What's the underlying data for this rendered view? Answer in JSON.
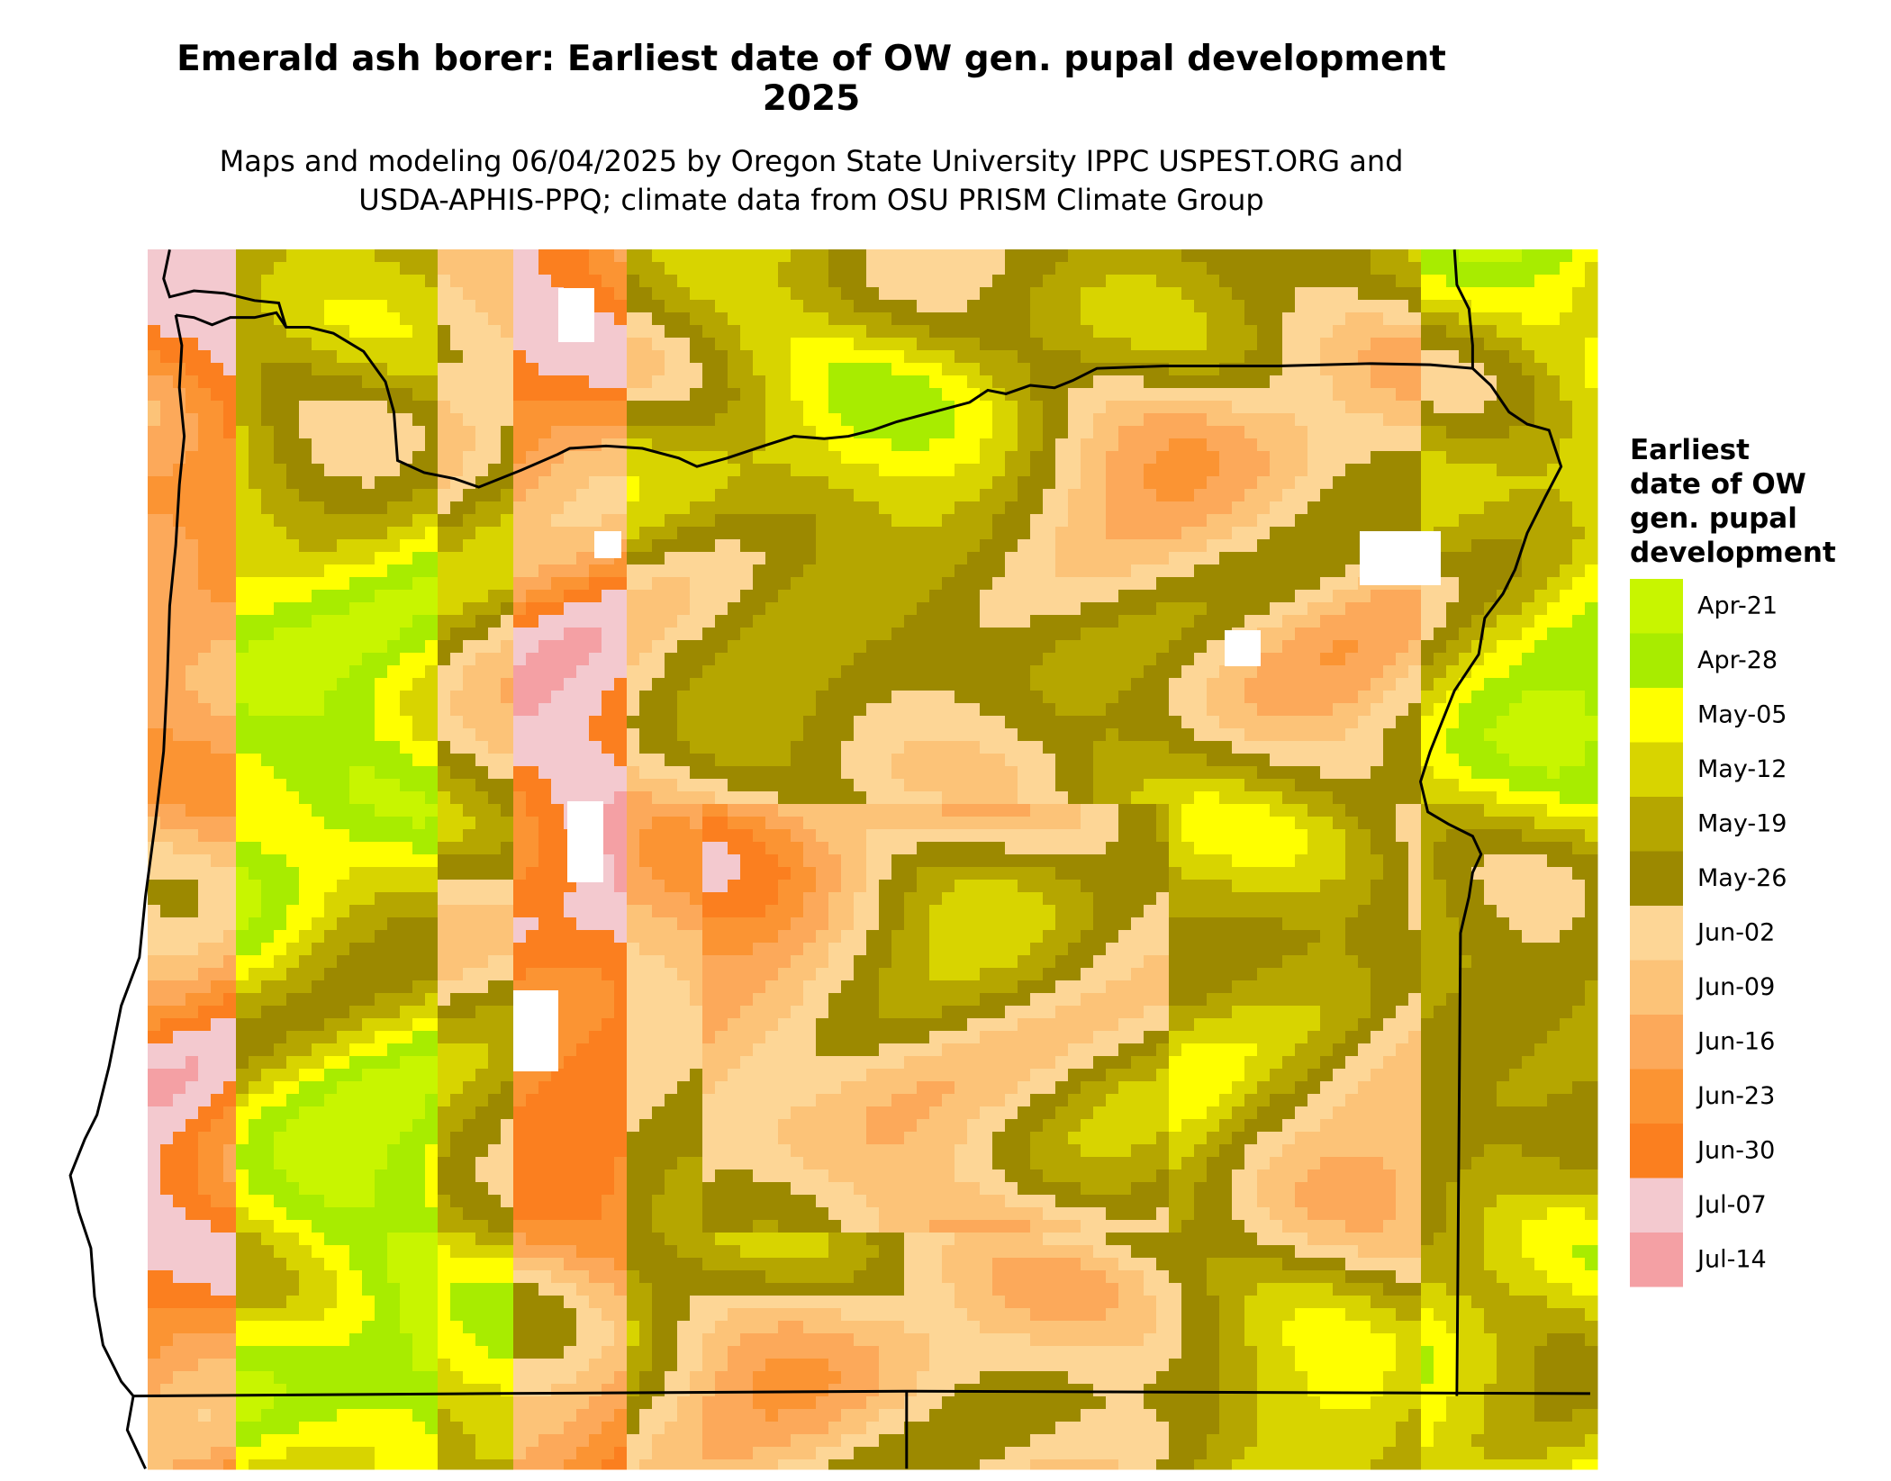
{
  "header": {
    "title_lines": [
      "Emerald ash borer: Earliest date of OW gen. pupal development",
      "2025"
    ],
    "subtitle_lines": [
      "Maps and modeling 06/04/2025 by Oregon State University IPPC USPEST.ORG and",
      "USDA-APHIS-PPQ; climate data from OSU PRISM Climate Group"
    ]
  },
  "legend": {
    "title_lines": [
      "Earliest",
      "date of OW",
      "gen. pupal",
      "development"
    ],
    "items": [
      {
        "label": "Apr-21",
        "color": "#c8f500"
      },
      {
        "label": "Apr-28",
        "color": "#a8ec00"
      },
      {
        "label": "May-05",
        "color": "#ffff00"
      },
      {
        "label": "May-12",
        "color": "#d8d400"
      },
      {
        "label": "May-19",
        "color": "#b5a600"
      },
      {
        "label": "May-26",
        "color": "#9c8900"
      },
      {
        "label": "Jun-02",
        "color": "#fdd696"
      },
      {
        "label": "Jun-09",
        "color": "#fcc378"
      },
      {
        "label": "Jun-16",
        "color": "#fca95a"
      },
      {
        "label": "Jun-23",
        "color": "#fb9433"
      },
      {
        "label": "Jun-30",
        "color": "#fb7f1f"
      },
      {
        "label": "Jul-07",
        "color": "#f3c9cf"
      },
      {
        "label": "Jul-14",
        "color": "#f4a0a4"
      }
    ]
  }
}
